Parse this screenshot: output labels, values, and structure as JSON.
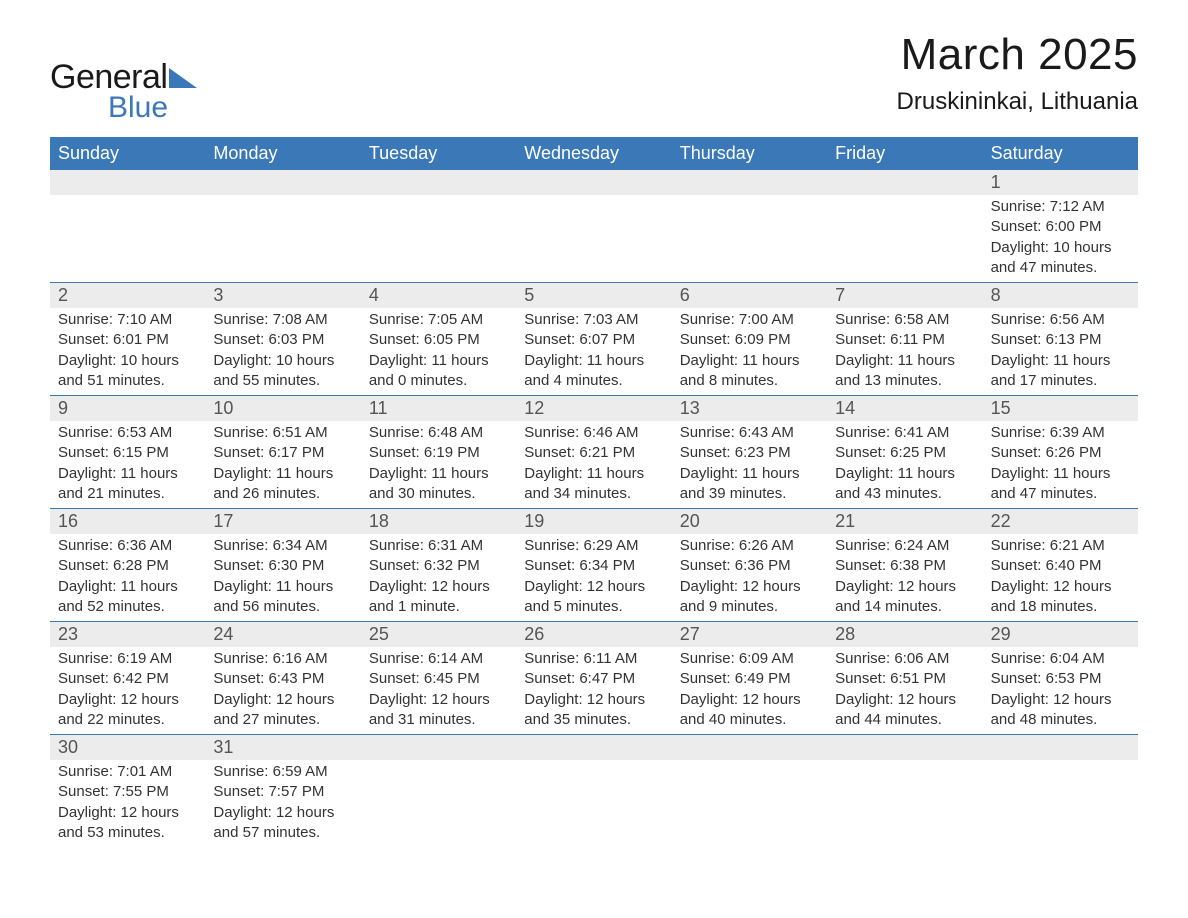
{
  "logo": {
    "text_general": "General",
    "text_blue": "Blue",
    "triangle_color": "#3b78b8"
  },
  "title": {
    "month": "March 2025",
    "location": "Druskininkai, Lithuania"
  },
  "colors": {
    "header_bg": "#3b78b8",
    "header_text": "#ffffff",
    "daynum_bg": "#ececec",
    "row_border": "#3b78b8",
    "body_text": "#333333",
    "daynum_text": "#555555"
  },
  "typography": {
    "month_title_fontsize": 44,
    "location_fontsize": 24,
    "dayhead_fontsize": 18,
    "daynum_fontsize": 18,
    "info_fontsize": 15
  },
  "day_headers": [
    "Sunday",
    "Monday",
    "Tuesday",
    "Wednesday",
    "Thursday",
    "Friday",
    "Saturday"
  ],
  "weeks": [
    [
      {
        "num": "",
        "sunrise": "",
        "sunset": "",
        "daylight1": "",
        "daylight2": ""
      },
      {
        "num": "",
        "sunrise": "",
        "sunset": "",
        "daylight1": "",
        "daylight2": ""
      },
      {
        "num": "",
        "sunrise": "",
        "sunset": "",
        "daylight1": "",
        "daylight2": ""
      },
      {
        "num": "",
        "sunrise": "",
        "sunset": "",
        "daylight1": "",
        "daylight2": ""
      },
      {
        "num": "",
        "sunrise": "",
        "sunset": "",
        "daylight1": "",
        "daylight2": ""
      },
      {
        "num": "",
        "sunrise": "",
        "sunset": "",
        "daylight1": "",
        "daylight2": ""
      },
      {
        "num": "1",
        "sunrise": "Sunrise: 7:12 AM",
        "sunset": "Sunset: 6:00 PM",
        "daylight1": "Daylight: 10 hours",
        "daylight2": "and 47 minutes."
      }
    ],
    [
      {
        "num": "2",
        "sunrise": "Sunrise: 7:10 AM",
        "sunset": "Sunset: 6:01 PM",
        "daylight1": "Daylight: 10 hours",
        "daylight2": "and 51 minutes."
      },
      {
        "num": "3",
        "sunrise": "Sunrise: 7:08 AM",
        "sunset": "Sunset: 6:03 PM",
        "daylight1": "Daylight: 10 hours",
        "daylight2": "and 55 minutes."
      },
      {
        "num": "4",
        "sunrise": "Sunrise: 7:05 AM",
        "sunset": "Sunset: 6:05 PM",
        "daylight1": "Daylight: 11 hours",
        "daylight2": "and 0 minutes."
      },
      {
        "num": "5",
        "sunrise": "Sunrise: 7:03 AM",
        "sunset": "Sunset: 6:07 PM",
        "daylight1": "Daylight: 11 hours",
        "daylight2": "and 4 minutes."
      },
      {
        "num": "6",
        "sunrise": "Sunrise: 7:00 AM",
        "sunset": "Sunset: 6:09 PM",
        "daylight1": "Daylight: 11 hours",
        "daylight2": "and 8 minutes."
      },
      {
        "num": "7",
        "sunrise": "Sunrise: 6:58 AM",
        "sunset": "Sunset: 6:11 PM",
        "daylight1": "Daylight: 11 hours",
        "daylight2": "and 13 minutes."
      },
      {
        "num": "8",
        "sunrise": "Sunrise: 6:56 AM",
        "sunset": "Sunset: 6:13 PM",
        "daylight1": "Daylight: 11 hours",
        "daylight2": "and 17 minutes."
      }
    ],
    [
      {
        "num": "9",
        "sunrise": "Sunrise: 6:53 AM",
        "sunset": "Sunset: 6:15 PM",
        "daylight1": "Daylight: 11 hours",
        "daylight2": "and 21 minutes."
      },
      {
        "num": "10",
        "sunrise": "Sunrise: 6:51 AM",
        "sunset": "Sunset: 6:17 PM",
        "daylight1": "Daylight: 11 hours",
        "daylight2": "and 26 minutes."
      },
      {
        "num": "11",
        "sunrise": "Sunrise: 6:48 AM",
        "sunset": "Sunset: 6:19 PM",
        "daylight1": "Daylight: 11 hours",
        "daylight2": "and 30 minutes."
      },
      {
        "num": "12",
        "sunrise": "Sunrise: 6:46 AM",
        "sunset": "Sunset: 6:21 PM",
        "daylight1": "Daylight: 11 hours",
        "daylight2": "and 34 minutes."
      },
      {
        "num": "13",
        "sunrise": "Sunrise: 6:43 AM",
        "sunset": "Sunset: 6:23 PM",
        "daylight1": "Daylight: 11 hours",
        "daylight2": "and 39 minutes."
      },
      {
        "num": "14",
        "sunrise": "Sunrise: 6:41 AM",
        "sunset": "Sunset: 6:25 PM",
        "daylight1": "Daylight: 11 hours",
        "daylight2": "and 43 minutes."
      },
      {
        "num": "15",
        "sunrise": "Sunrise: 6:39 AM",
        "sunset": "Sunset: 6:26 PM",
        "daylight1": "Daylight: 11 hours",
        "daylight2": "and 47 minutes."
      }
    ],
    [
      {
        "num": "16",
        "sunrise": "Sunrise: 6:36 AM",
        "sunset": "Sunset: 6:28 PM",
        "daylight1": "Daylight: 11 hours",
        "daylight2": "and 52 minutes."
      },
      {
        "num": "17",
        "sunrise": "Sunrise: 6:34 AM",
        "sunset": "Sunset: 6:30 PM",
        "daylight1": "Daylight: 11 hours",
        "daylight2": "and 56 minutes."
      },
      {
        "num": "18",
        "sunrise": "Sunrise: 6:31 AM",
        "sunset": "Sunset: 6:32 PM",
        "daylight1": "Daylight: 12 hours",
        "daylight2": "and 1 minute."
      },
      {
        "num": "19",
        "sunrise": "Sunrise: 6:29 AM",
        "sunset": "Sunset: 6:34 PM",
        "daylight1": "Daylight: 12 hours",
        "daylight2": "and 5 minutes."
      },
      {
        "num": "20",
        "sunrise": "Sunrise: 6:26 AM",
        "sunset": "Sunset: 6:36 PM",
        "daylight1": "Daylight: 12 hours",
        "daylight2": "and 9 minutes."
      },
      {
        "num": "21",
        "sunrise": "Sunrise: 6:24 AM",
        "sunset": "Sunset: 6:38 PM",
        "daylight1": "Daylight: 12 hours",
        "daylight2": "and 14 minutes."
      },
      {
        "num": "22",
        "sunrise": "Sunrise: 6:21 AM",
        "sunset": "Sunset: 6:40 PM",
        "daylight1": "Daylight: 12 hours",
        "daylight2": "and 18 minutes."
      }
    ],
    [
      {
        "num": "23",
        "sunrise": "Sunrise: 6:19 AM",
        "sunset": "Sunset: 6:42 PM",
        "daylight1": "Daylight: 12 hours",
        "daylight2": "and 22 minutes."
      },
      {
        "num": "24",
        "sunrise": "Sunrise: 6:16 AM",
        "sunset": "Sunset: 6:43 PM",
        "daylight1": "Daylight: 12 hours",
        "daylight2": "and 27 minutes."
      },
      {
        "num": "25",
        "sunrise": "Sunrise: 6:14 AM",
        "sunset": "Sunset: 6:45 PM",
        "daylight1": "Daylight: 12 hours",
        "daylight2": "and 31 minutes."
      },
      {
        "num": "26",
        "sunrise": "Sunrise: 6:11 AM",
        "sunset": "Sunset: 6:47 PM",
        "daylight1": "Daylight: 12 hours",
        "daylight2": "and 35 minutes."
      },
      {
        "num": "27",
        "sunrise": "Sunrise: 6:09 AM",
        "sunset": "Sunset: 6:49 PM",
        "daylight1": "Daylight: 12 hours",
        "daylight2": "and 40 minutes."
      },
      {
        "num": "28",
        "sunrise": "Sunrise: 6:06 AM",
        "sunset": "Sunset: 6:51 PM",
        "daylight1": "Daylight: 12 hours",
        "daylight2": "and 44 minutes."
      },
      {
        "num": "29",
        "sunrise": "Sunrise: 6:04 AM",
        "sunset": "Sunset: 6:53 PM",
        "daylight1": "Daylight: 12 hours",
        "daylight2": "and 48 minutes."
      }
    ],
    [
      {
        "num": "30",
        "sunrise": "Sunrise: 7:01 AM",
        "sunset": "Sunset: 7:55 PM",
        "daylight1": "Daylight: 12 hours",
        "daylight2": "and 53 minutes."
      },
      {
        "num": "31",
        "sunrise": "Sunrise: 6:59 AM",
        "sunset": "Sunset: 7:57 PM",
        "daylight1": "Daylight: 12 hours",
        "daylight2": "and 57 minutes."
      },
      {
        "num": "",
        "sunrise": "",
        "sunset": "",
        "daylight1": "",
        "daylight2": ""
      },
      {
        "num": "",
        "sunrise": "",
        "sunset": "",
        "daylight1": "",
        "daylight2": ""
      },
      {
        "num": "",
        "sunrise": "",
        "sunset": "",
        "daylight1": "",
        "daylight2": ""
      },
      {
        "num": "",
        "sunrise": "",
        "sunset": "",
        "daylight1": "",
        "daylight2": ""
      },
      {
        "num": "",
        "sunrise": "",
        "sunset": "",
        "daylight1": "",
        "daylight2": ""
      }
    ]
  ]
}
